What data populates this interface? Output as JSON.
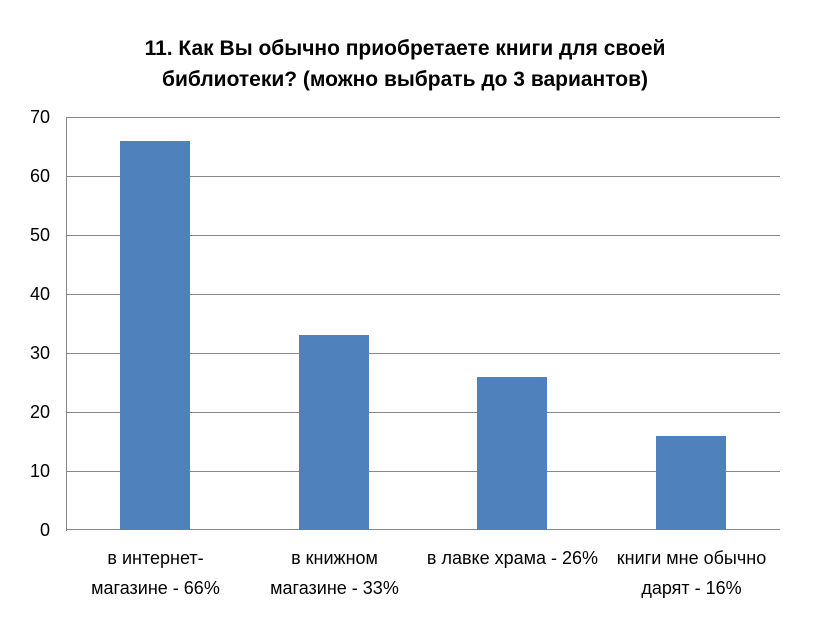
{
  "title": {
    "lines": [
      "11. Как Вы обычно приобретаете книги для своей",
      "библиотеки? (можно выбрать до 3 вариантов)"
    ]
  },
  "chart_data": {
    "type": "bar",
    "title": "11. Как Вы обычно приобретаете книги для своей библиотеки? (можно выбрать до 3 вариантов)",
    "categories": [
      "в интернет-магазине - 66%",
      "в книжном магазине - 33%",
      "в лавке храма - 26%",
      "книги мне обычно дарят - 16%"
    ],
    "category_lines": [
      [
        "в интернет-",
        "магазине - 66%"
      ],
      [
        "в книжном",
        "магазине - 33%"
      ],
      [
        "в лавке храма - 26%"
      ],
      [
        "книги мне обычно",
        "дарят - 16%"
      ]
    ],
    "values": [
      66,
      33,
      26,
      16
    ],
    "xlabel": "",
    "ylabel": "",
    "ylim": [
      0,
      70
    ],
    "yticks": [
      0,
      10,
      20,
      30,
      40,
      50,
      60,
      70
    ],
    "grid": true,
    "legend": "none",
    "bar_color": "#4F81BD",
    "gridline_color": "#878787",
    "axis_color": "#878787",
    "text_color": "#000000"
  }
}
